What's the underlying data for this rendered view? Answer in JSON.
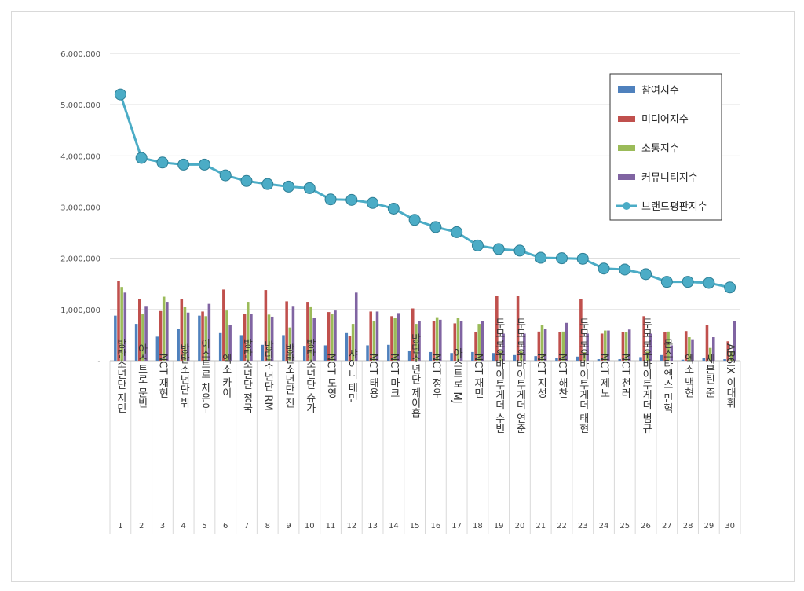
{
  "chart_data": {
    "type": "bar",
    "title": "",
    "xlabel": "",
    "ylabel": "",
    "ylim": [
      0,
      6000000
    ],
    "yticks": [
      {
        "value": 0,
        "label": "-"
      },
      {
        "value": 1000000,
        "label": "1,000,000"
      },
      {
        "value": 2000000,
        "label": "2,000,000"
      },
      {
        "value": 3000000,
        "label": "3,000,000"
      },
      {
        "value": 4000000,
        "label": "4,000,000"
      },
      {
        "value": 5000000,
        "label": "5,000,000"
      },
      {
        "value": 6000000,
        "label": "6,000,000"
      }
    ],
    "grid": true,
    "legend_position": "top-right",
    "ranks": [
      "1",
      "2",
      "3",
      "4",
      "5",
      "6",
      "7",
      "8",
      "9",
      "10",
      "11",
      "12",
      "13",
      "14",
      "15",
      "16",
      "17",
      "18",
      "19",
      "20",
      "21",
      "22",
      "23",
      "24",
      "25",
      "26",
      "27",
      "28",
      "29",
      "30"
    ],
    "categories": [
      "방탄소년단 지민",
      "아스트로 문빈",
      "NCT 재현",
      "방탄소년단 뷔",
      "아스트로 차은우",
      "엑소 카이",
      "방탄소년단 정국",
      "방탄소년단 RM",
      "방탄소년단 진",
      "방탄소년단 슈가",
      "NCT 도영",
      "샤이니 태민",
      "NCT 태용",
      "NCT 마크",
      "방탄소년단 제이홉",
      "NCT 정우",
      "아스트로 MJ",
      "NCT 재민",
      "투모로우바이투게더 수빈",
      "투모로우바이투게더 연준",
      "NCT 지성",
      "NCT 해찬",
      "투모로우바이투게더 태현",
      "NCT 제노",
      "NCT 천러",
      "투모로우바이투게더 범규",
      "몬스타엑스 민혁",
      "엑소 백현",
      "세븐틴 준",
      "AB6IX 이대휘"
    ],
    "series": [
      {
        "name": "참여지수",
        "color": "#4f81bd",
        "kind": "bar",
        "values": [
          880000,
          720000,
          470000,
          620000,
          880000,
          540000,
          500000,
          310000,
          500000,
          290000,
          300000,
          540000,
          300000,
          310000,
          200000,
          170000,
          150000,
          170000,
          150000,
          110000,
          90000,
          50000,
          80000,
          30000,
          30000,
          70000,
          110000,
          20000,
          60000,
          30000
        ]
      },
      {
        "name": "미디어지수",
        "color": "#c0504d",
        "kind": "bar",
        "values": [
          1550000,
          1200000,
          970000,
          1200000,
          960000,
          1390000,
          920000,
          1380000,
          1160000,
          1150000,
          950000,
          480000,
          960000,
          870000,
          1020000,
          770000,
          730000,
          560000,
          1270000,
          1270000,
          570000,
          560000,
          1200000,
          530000,
          560000,
          870000,
          560000,
          580000,
          700000,
          380000
        ]
      },
      {
        "name": "소통지수",
        "color": "#9bbb59",
        "kind": "bar",
        "values": [
          1440000,
          920000,
          1250000,
          1050000,
          870000,
          980000,
          1150000,
          900000,
          650000,
          1060000,
          920000,
          720000,
          780000,
          830000,
          720000,
          850000,
          840000,
          720000,
          200000,
          200000,
          700000,
          570000,
          170000,
          590000,
          560000,
          180000,
          570000,
          460000,
          250000,
          200000
        ]
      },
      {
        "name": "커뮤니티지수",
        "color": "#8064a2",
        "kind": "bar",
        "values": [
          1330000,
          1070000,
          1150000,
          940000,
          1110000,
          700000,
          920000,
          860000,
          1070000,
          830000,
          980000,
          1330000,
          960000,
          930000,
          780000,
          800000,
          780000,
          770000,
          530000,
          530000,
          620000,
          740000,
          530000,
          590000,
          610000,
          530000,
          300000,
          420000,
          460000,
          780000
        ]
      },
      {
        "name": "브랜드평판지수",
        "color": "#4bacc6",
        "kind": "line",
        "values": [
          5200000,
          3960000,
          3870000,
          3830000,
          3830000,
          3620000,
          3510000,
          3450000,
          3400000,
          3370000,
          3150000,
          3140000,
          3080000,
          2970000,
          2750000,
          2610000,
          2510000,
          2250000,
          2180000,
          2150000,
          2010000,
          2000000,
          1990000,
          1800000,
          1780000,
          1690000,
          1540000,
          1540000,
          1520000,
          1430000
        ]
      }
    ]
  }
}
